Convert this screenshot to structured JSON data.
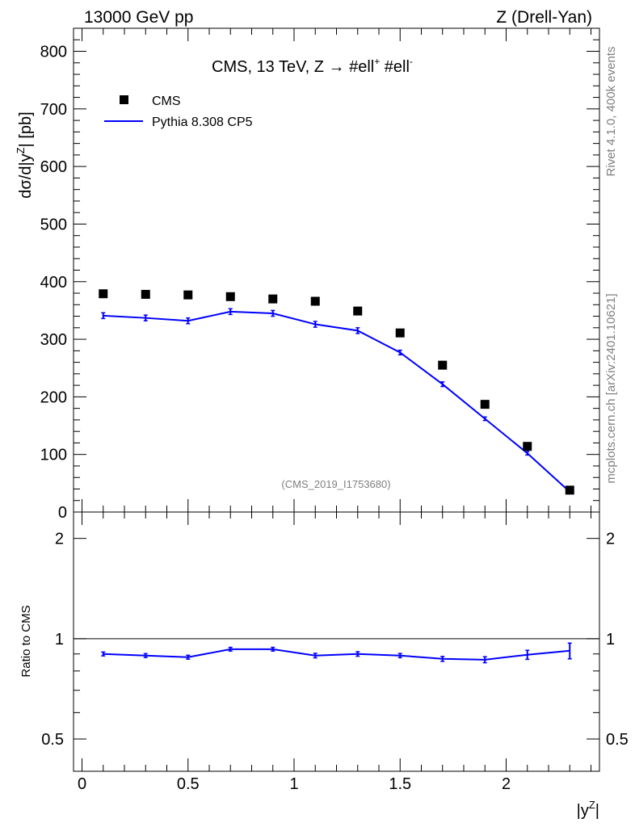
{
  "header": {
    "left": "13000 GeV pp",
    "right": "Z (Drell-Yan)"
  },
  "side_labels": {
    "rivet": "Rivet 4.1.0,  400k events",
    "mcplots": "mcplots.cern.ch [arXiv:2401.10621]"
  },
  "chart_data": {
    "type": "scatter",
    "title": "CMS, 13 TeV, Z →  #ell⁺ #ell⁻",
    "title_main": "CMS, 13 TeV, Z →  #ell",
    "title_sup1": "+",
    "title_mid": " #ell",
    "title_sup2": "-",
    "watermark": "(CMS_2019_I1753680)",
    "xlabel": "|y",
    "xlabel_sup": "Z",
    "xlabel_end": "|",
    "ylabel": "dσ/d|y",
    "ylabel_sup": "Z",
    "ylabel_end": "| [pb]",
    "ratio_ylabel": "Ratio to CMS",
    "xlim": [
      -0.04,
      2.44
    ],
    "ylim": [
      0,
      840
    ],
    "ratio_ylim": [
      0.4,
      2.4
    ],
    "x_ticks": [
      0,
      0.5,
      1,
      1.5,
      2
    ],
    "x_tick_labels": [
      "0",
      "0.5",
      "1",
      "1.5",
      "2"
    ],
    "y_ticks": [
      0,
      100,
      200,
      300,
      400,
      500,
      600,
      700,
      800
    ],
    "y_tick_labels": [
      "0",
      "100",
      "200",
      "300",
      "400",
      "500",
      "600",
      "700",
      "800"
    ],
    "ratio_ticks": [
      0.5,
      1,
      2
    ],
    "ratio_tick_labels": [
      "0.5",
      "1",
      "2"
    ],
    "legend_position": "top-left",
    "x": [
      0.1,
      0.3,
      0.5,
      0.7,
      0.9,
      1.1,
      1.3,
      1.5,
      1.7,
      1.9,
      2.1,
      2.3
    ],
    "series": [
      {
        "name": "CMS",
        "style": "markers",
        "color": "#000000",
        "values": [
          379,
          378,
          377,
          374,
          370,
          366,
          349,
          311,
          255,
          187,
          114,
          38
        ]
      },
      {
        "name": "Pythia 8.308 CP5",
        "style": "line",
        "color": "#0000ff",
        "values": [
          341,
          337,
          332,
          348,
          345,
          326,
          315,
          277,
          222,
          162,
          102,
          35
        ],
        "errors": [
          5,
          5,
          5,
          5,
          5,
          5,
          5,
          4,
          4,
          3,
          3,
          2
        ]
      }
    ],
    "ratio": {
      "name": "Pythia 8.308 CP5 / CMS",
      "values": [
        0.9,
        0.89,
        0.88,
        0.93,
        0.93,
        0.89,
        0.9,
        0.89,
        0.87,
        0.865,
        0.895,
        0.92
      ],
      "errors": [
        0.012,
        0.012,
        0.012,
        0.012,
        0.012,
        0.014,
        0.014,
        0.013,
        0.015,
        0.018,
        0.028,
        0.05
      ]
    }
  }
}
